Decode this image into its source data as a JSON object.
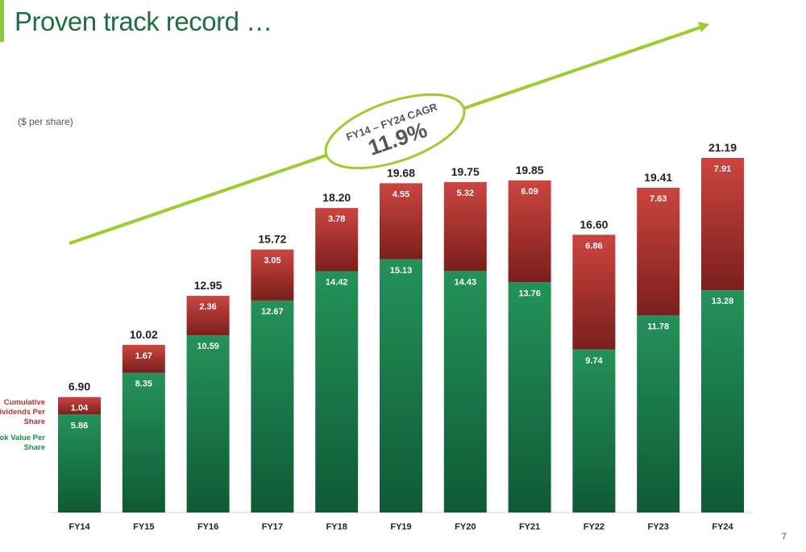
{
  "slide": {
    "title": "Proven track record …",
    "unit_label": "($ per share)",
    "page_number": "7"
  },
  "legend": {
    "dividends": "Cumulative Dividends Per Share",
    "book_value": "Book Value Per Share"
  },
  "cagr": {
    "label": "FY14 – FY24 CAGR",
    "value": "11.9%"
  },
  "colors": {
    "accent": "#8dc63f",
    "title": "#1f6e43",
    "book_value": "#1f8a4c",
    "dividends": "#b5322e",
    "trend_arrow": "#9ccc2e"
  },
  "chart_data": {
    "type": "bar",
    "stacked": true,
    "categories": [
      "FY14",
      "FY15",
      "FY16",
      "FY17",
      "FY18",
      "FY19",
      "FY20",
      "FY21",
      "FY22",
      "FY23",
      "FY24"
    ],
    "series": [
      {
        "name": "Book Value Per Share",
        "values": [
          5.86,
          8.35,
          10.59,
          12.67,
          14.42,
          15.13,
          14.43,
          13.76,
          9.74,
          11.78,
          13.28
        ]
      },
      {
        "name": "Cumulative Dividends Per Share",
        "values": [
          1.04,
          1.67,
          2.36,
          3.05,
          3.78,
          4.55,
          5.32,
          6.09,
          6.86,
          7.63,
          7.91
        ]
      }
    ],
    "totals": [
      "6.90",
      "10.02",
      "12.95",
      "15.72",
      "18.20",
      "19.68",
      "19.75",
      "19.85",
      "16.60",
      "19.41",
      "21.19"
    ],
    "bv_labels": [
      "5.86",
      "8.35",
      "10.59",
      "12.67",
      "14.42",
      "15.13",
      "14.43",
      "13.76",
      "9.74",
      "11.78",
      "13.28"
    ],
    "div_labels": [
      "1.04",
      "1.67",
      "2.36",
      "3.05",
      "3.78",
      "4.55",
      "5.32",
      "6.09",
      "6.86",
      "7.63",
      "7.91"
    ],
    "title": "",
    "xlabel": "",
    "ylabel": "($ per share)",
    "ylim": [
      0,
      21.19
    ],
    "grid": false,
    "legend_position": "left"
  }
}
